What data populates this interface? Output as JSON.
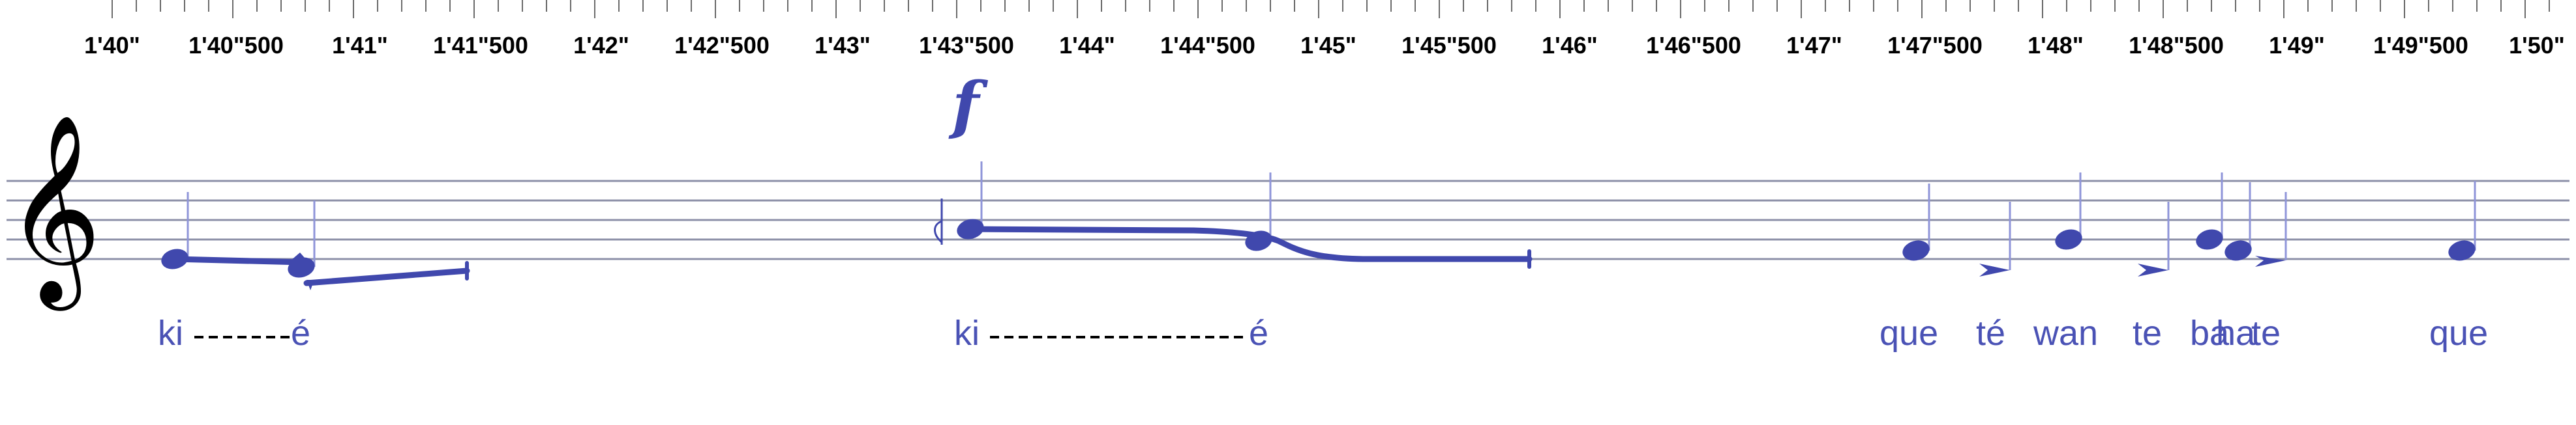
{
  "timeline": {
    "labels": [
      "1'40\"",
      "1'40\"500",
      "1'41\"",
      "1'41\"500",
      "1'42\"",
      "1'42\"500",
      "1'43\"",
      "1'43\"500",
      "1'44\"",
      "1'44\"500",
      "1'45\"",
      "1'45\"500",
      "1'46\"",
      "1'46\"500",
      "1'47\"",
      "1'47\"500",
      "1'48\"",
      "1'48\"500",
      "1'49\"",
      "1'49\"500",
      "1'50\""
    ]
  },
  "score": {
    "clef": "treble-clef",
    "clef_glyph": "𝄞",
    "dynamic": "f",
    "accent_color": "#4048ad",
    "staff_color": "#8d90a8",
    "lyrics": [
      {
        "text": "ki"
      },
      {
        "text": "é"
      },
      {
        "text": "ki"
      },
      {
        "text": "é"
      },
      {
        "text": "que"
      },
      {
        "text": "té"
      },
      {
        "text": "wan"
      },
      {
        "text": "te"
      },
      {
        "text": "ba"
      },
      {
        "text": "ha"
      },
      {
        "text": "te"
      },
      {
        "text": "que"
      }
    ]
  }
}
